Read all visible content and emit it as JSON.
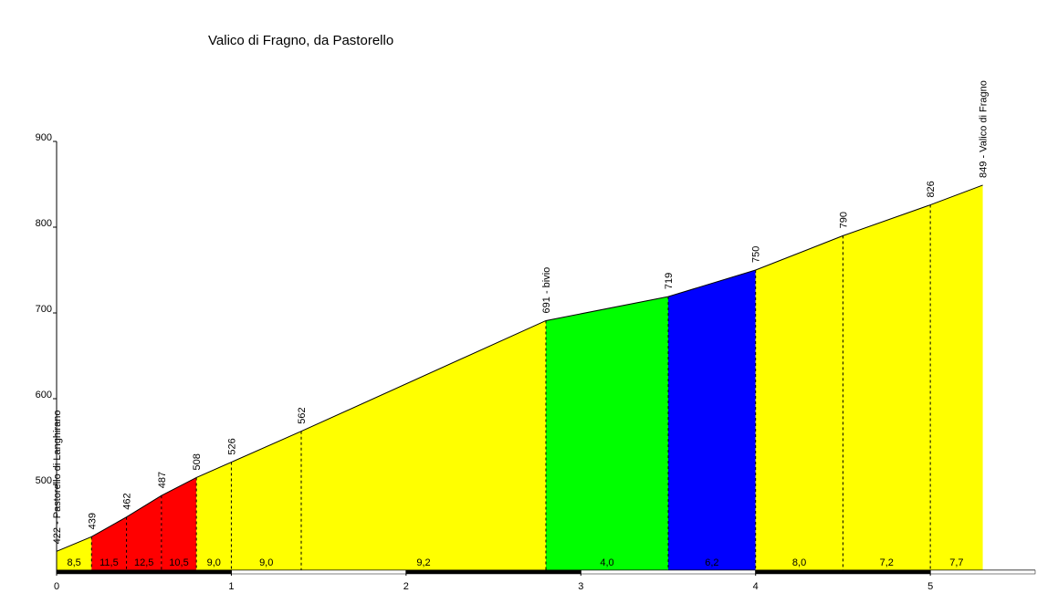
{
  "chart_data": {
    "type": "elevation-profile",
    "title": "Valico di Fragno, da Pastorello",
    "x": [
      0,
      0.2,
      0.4,
      0.6,
      0.8,
      1.0,
      1.4,
      2.8,
      3.5,
      4.0,
      4.5,
      5.0,
      5.3
    ],
    "values": [
      422,
      439,
      462,
      487,
      508,
      526,
      562,
      691,
      719,
      750,
      790,
      826,
      849
    ],
    "value_labels": [
      "422 - Pastorello di Langhirano",
      "439",
      "462",
      "487",
      "508",
      "526",
      "562",
      "691 - bivio",
      "719",
      "750",
      "790",
      "826",
      "849 - Valico di Fragno"
    ],
    "segments": {
      "values": [
        8.5,
        11.5,
        12.5,
        10.5,
        9.0,
        9.0,
        9.2,
        4.0,
        6.2,
        8.0,
        7.2,
        7.7
      ],
      "value_labels": [
        "8,5",
        "11,5",
        "12,5",
        "10,5",
        "9,0",
        "9,0",
        "9,2",
        "4,0",
        "6,2",
        "8,0",
        "7,2",
        "7,7"
      ],
      "colors": [
        "#ffff00",
        "#ff0000",
        "#ff0000",
        "#ff0000",
        "#ffff00",
        "#ffff00",
        "#ffff00",
        "#00ff00",
        "#0000ff",
        "#ffff00",
        "#ffff00",
        "#ffff00"
      ]
    },
    "xlim": [
      0,
      5.6
    ],
    "xticks": [
      0,
      1,
      2,
      3,
      4,
      5
    ],
    "ylim": [
      400,
      900
    ],
    "yticks": [
      500,
      600,
      700,
      800,
      900
    ]
  }
}
